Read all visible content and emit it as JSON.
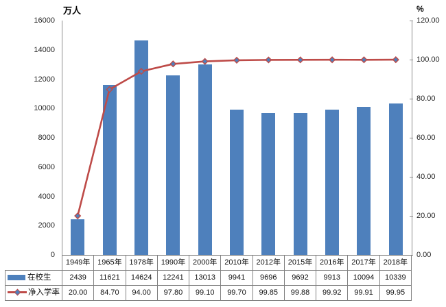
{
  "chart_data": {
    "type": "bar",
    "combo": "bar-line",
    "title": "",
    "categories": [
      "1949年",
      "1965年",
      "1978年",
      "1990年",
      "2000年",
      "2010年",
      "2012年",
      "2015年",
      "2016年",
      "2017年",
      "2018年"
    ],
    "series": [
      {
        "name": "在校生",
        "type": "bar",
        "axis": "left",
        "color": "#4e80bc",
        "values": [
          2439,
          11621,
          14624,
          12241,
          13013,
          9941,
          9696,
          9692,
          9913,
          10094,
          10339
        ],
        "labels": [
          "2439",
          "11621",
          "14624",
          "12241",
          "13013",
          "9941",
          "9696",
          "9692",
          "9913",
          "10094",
          "10339"
        ]
      },
      {
        "name": "净入学率",
        "type": "line",
        "axis": "right",
        "color": "#be4b48",
        "marker": "diamond",
        "marker_fill": "#4e80bc",
        "values": [
          20.0,
          84.7,
          94.0,
          97.8,
          99.1,
          99.7,
          99.85,
          99.88,
          99.92,
          99.91,
          99.95
        ],
        "labels": [
          "20.00",
          "84.70",
          "94.00",
          "97.80",
          "99.10",
          "99.70",
          "99.85",
          "99.88",
          "99.92",
          "99.91",
          "99.95"
        ]
      }
    ],
    "left_axis": {
      "title": "万人",
      "min": 0,
      "max": 16000,
      "step": 2000,
      "tick_labels": [
        "0",
        "2000",
        "4000",
        "6000",
        "8000",
        "10000",
        "12000",
        "14000",
        "16000"
      ]
    },
    "right_axis": {
      "title": "%",
      "min": 0,
      "max": 120,
      "step": 20,
      "tick_labels": [
        "0.00",
        "20.00",
        "40.00",
        "60.00",
        "80.00",
        "100.00",
        "120.00"
      ]
    },
    "grid": false,
    "legend_position": "data-table-left"
  }
}
